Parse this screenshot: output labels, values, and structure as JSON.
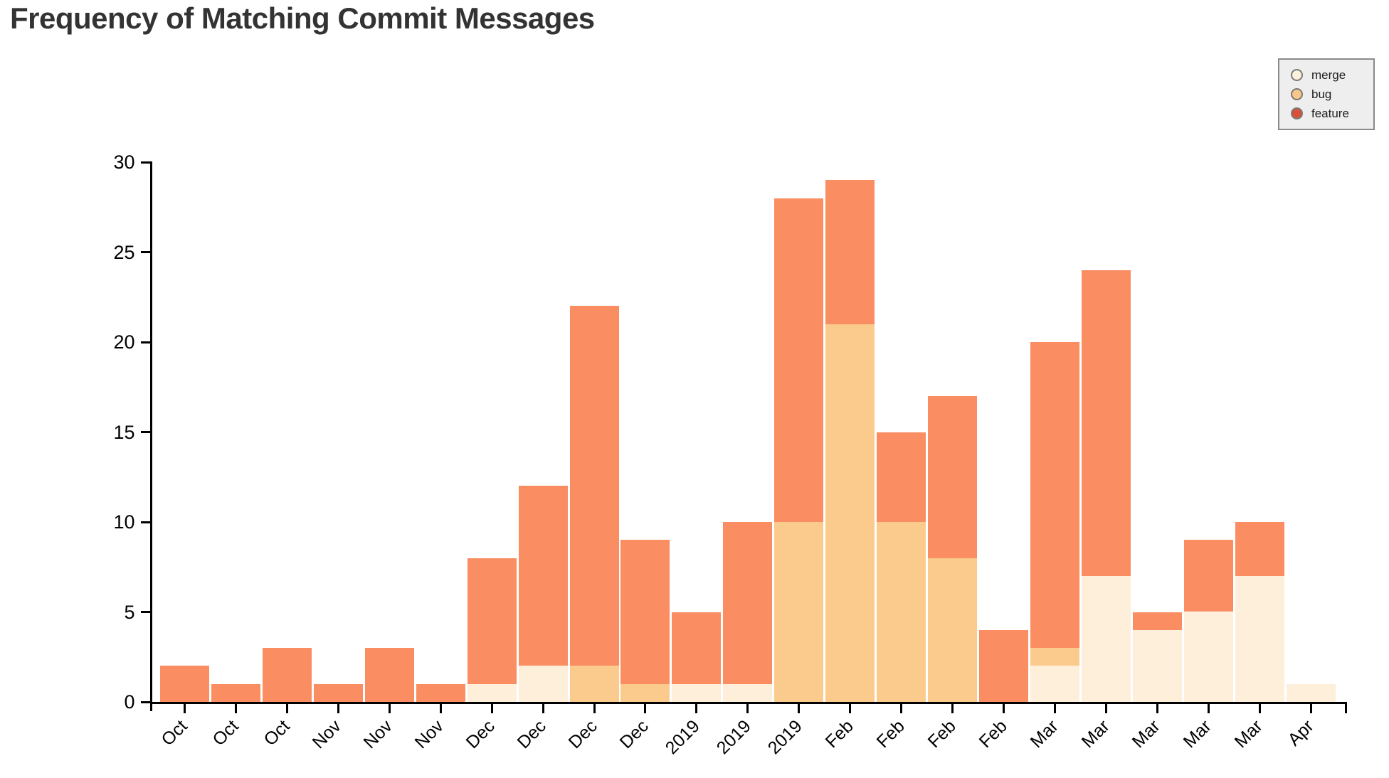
{
  "title": "Frequency of Matching Commit Messages",
  "legend": {
    "background": "#eeeeee",
    "border_color": "#8a8a8a",
    "items": [
      {
        "label": "merge",
        "color": "#FDF0DC"
      },
      {
        "label": "bug",
        "color": "#F9C689"
      },
      {
        "label": "feature",
        "color": "#D8503A"
      }
    ]
  },
  "chart_data": {
    "type": "bar",
    "stacked": true,
    "title": "Frequency of Matching Commit Messages",
    "xlabel": "",
    "ylabel": "",
    "grid": false,
    "legend_position": "top-right",
    "ylim": [
      0,
      30
    ],
    "y_ticks": [
      0,
      5,
      10,
      15,
      20,
      25,
      30
    ],
    "categories": [
      "Oct",
      "Oct",
      "Oct",
      "Nov",
      "Nov",
      "Nov",
      "Dec",
      "Dec",
      "Dec",
      "Dec",
      "2019",
      "2019",
      "2019",
      "Feb",
      "Feb",
      "Feb",
      "Feb",
      "Mar",
      "Mar",
      "Mar",
      "Mar",
      "Mar",
      "Apr"
    ],
    "series": [
      {
        "name": "merge",
        "color": "#FDEFDA",
        "values": [
          0,
          0,
          0,
          0,
          0,
          0,
          1,
          2,
          0,
          0,
          1,
          1,
          0,
          0,
          0,
          0,
          0,
          2,
          7,
          4,
          5,
          7,
          1
        ]
      },
      {
        "name": "bug",
        "color": "#FBCB8E",
        "values": [
          0,
          0,
          0,
          0,
          0,
          0,
          0,
          0,
          2,
          1,
          0,
          0,
          10,
          21,
          10,
          8,
          0,
          1,
          0,
          0,
          0,
          0,
          0
        ]
      },
      {
        "name": "feature",
        "color": "#FA8D61",
        "values": [
          2,
          1,
          3,
          1,
          3,
          1,
          7,
          10,
          20,
          8,
          4,
          9,
          18,
          8,
          5,
          9,
          4,
          17,
          17,
          1,
          4,
          3,
          0
        ]
      }
    ],
    "totals": [
      2,
      1,
      3,
      1,
      3,
      1,
      8,
      12,
      22,
      9,
      5,
      10,
      28,
      29,
      15,
      17,
      4,
      20,
      24,
      5,
      9,
      10,
      1
    ]
  }
}
